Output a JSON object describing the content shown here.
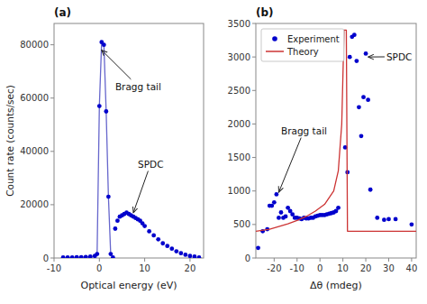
{
  "chart_data": [
    {
      "type": "scatter",
      "title": "(a)",
      "xlabel": "Optical energy (eV)",
      "ylabel": "Count rate (counts/sec)",
      "xlim": [
        -10,
        23
      ],
      "ylim": [
        0,
        88000
      ],
      "xticks": [
        -10,
        0,
        10,
        20
      ],
      "yticks": [
        0,
        20000,
        40000,
        60000,
        80000
      ],
      "grid": false,
      "series": [
        {
          "type": "line",
          "color": "#6666cc",
          "x": [
            -8,
            -7,
            -6,
            -5,
            -4,
            -3,
            -2,
            -1,
            -0.5,
            0,
            0.5,
            1,
            1.5,
            2,
            2.5,
            3
          ],
          "values": [
            200,
            200,
            200,
            300,
            300,
            400,
            500,
            800,
            1500,
            57000,
            81000,
            80000,
            55000,
            23000,
            1500,
            200
          ]
        },
        {
          "type": "scatter",
          "marker": "circle",
          "color": "#0000cc",
          "x": [
            -8,
            -7,
            -6,
            -5,
            -4,
            -3,
            -2,
            -1,
            -0.5,
            0,
            0.5,
            1,
            1.5,
            2,
            2.5,
            3
          ],
          "values": [
            200,
            200,
            200,
            300,
            300,
            400,
            500,
            800,
            1500,
            57000,
            81000,
            80000,
            55000,
            23000,
            1500,
            200
          ]
        },
        {
          "type": "scatter",
          "marker": "circle",
          "color": "#0000cc",
          "x": [
            3.5,
            4,
            4.5,
            5,
            5.5,
            6,
            6.5,
            7,
            7.5,
            8,
            8.5,
            9,
            9.5,
            10,
            11,
            12,
            13,
            14,
            15,
            16,
            17,
            18,
            19,
            20,
            21,
            22
          ],
          "values": [
            11000,
            14000,
            15500,
            16000,
            16500,
            17000,
            16500,
            16000,
            15500,
            15000,
            14500,
            14000,
            13000,
            12000,
            10000,
            8500,
            7000,
            5500,
            4500,
            3500,
            2500,
            1800,
            1200,
            800,
            500,
            200
          ]
        }
      ],
      "annotations": [
        {
          "text": "Bragg tail",
          "x": 3.5,
          "y": 63000,
          "arrow_x": 0.5,
          "arrow_y": 78000
        },
        {
          "text": "SPDC",
          "x": 8.5,
          "y": 34000,
          "arrow_x": 7.5,
          "arrow_y": 17000
        }
      ]
    },
    {
      "type": "scatter",
      "title": "(b)",
      "xlabel": "Δθ (mdeg)",
      "xlim": [
        -28,
        42
      ],
      "ylim": [
        0,
        3500
      ],
      "xticks": [
        -20,
        -10,
        0,
        10,
        20,
        30,
        40
      ],
      "yticks": [
        0,
        500,
        1000,
        1500,
        2000,
        2500,
        3000,
        3500
      ],
      "grid": false,
      "legend": "upper left",
      "series": [
        {
          "name": "Experiment",
          "type": "scatter",
          "marker": "circle",
          "color": "#0000cc",
          "x": [
            -27,
            -25,
            -23,
            -22,
            -21,
            -20,
            -19,
            -18,
            -17,
            -16,
            -15,
            -14,
            -13,
            -12,
            -11,
            -10,
            -9,
            -8,
            -7,
            -6,
            -5,
            -4,
            -3,
            -2,
            -1,
            0,
            1,
            2,
            3,
            4,
            5,
            6,
            7,
            8,
            11,
            12,
            13,
            14,
            15,
            16,
            17,
            18,
            19,
            20,
            21,
            22,
            25,
            28,
            30,
            33,
            40
          ],
          "values": [
            150,
            400,
            430,
            780,
            780,
            830,
            950,
            600,
            680,
            600,
            620,
            750,
            700,
            650,
            600,
            600,
            590,
            580,
            600,
            590,
            590,
            600,
            600,
            620,
            630,
            640,
            640,
            640,
            650,
            660,
            670,
            680,
            700,
            750,
            1650,
            1280,
            3000,
            3300,
            3330,
            2940,
            2250,
            1820,
            2400,
            3050,
            2360,
            1020,
            600,
            570,
            580,
            580,
            500
          ]
        },
        {
          "name": "Theory",
          "type": "line",
          "color": "#cc3333",
          "x": [
            -28,
            -22,
            -18,
            -14,
            -10,
            -6,
            -2,
            2,
            6,
            8,
            9.5,
            10.5,
            10.5,
            11,
            11.5,
            11.5,
            12,
            12,
            42
          ],
          "values": [
            400,
            430,
            470,
            510,
            560,
            620,
            700,
            800,
            1000,
            1300,
            2000,
            3400,
            3400,
            3400,
            3400,
            3400,
            400,
            400,
            400
          ]
        }
      ],
      "annotations": [
        {
          "text": "Bragg tail",
          "x": -17,
          "y": 1850,
          "arrow_x": -18,
          "arrow_y": 980
        },
        {
          "text": "SPDC",
          "x": 29,
          "y": 2950,
          "arrow_x": 21,
          "arrow_y": 3000
        }
      ]
    }
  ]
}
